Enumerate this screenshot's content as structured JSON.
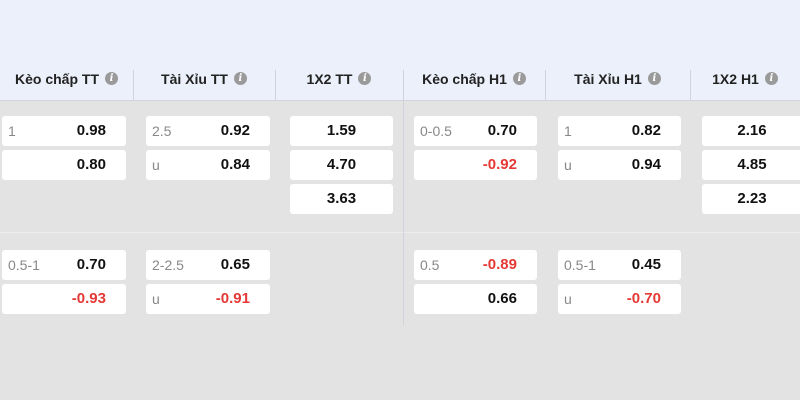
{
  "columns": [
    {
      "title": "Kèo chấp TT",
      "groups": [
        [
          {
            "label": "1",
            "value": "0.98"
          },
          {
            "value": "0.80"
          }
        ],
        [
          {
            "label": "0.5-1",
            "value": "0.70"
          },
          {
            "value": "-0.93"
          }
        ]
      ]
    },
    {
      "title": "Tài Xỉu TT",
      "groups": [
        [
          {
            "label": "2.5",
            "value": "0.92"
          },
          {
            "label": "u",
            "value": "0.84"
          }
        ],
        [
          {
            "label": "2-2.5",
            "value": "0.65"
          },
          {
            "label": "u",
            "value": "-0.91"
          }
        ]
      ]
    },
    {
      "title": "1X2 TT",
      "groups": [
        [
          {
            "value": "1.59"
          },
          {
            "value": "4.70"
          },
          {
            "value": "3.63"
          }
        ],
        []
      ]
    },
    {
      "title": "Kèo chấp H1",
      "groups": [
        [
          {
            "label": "0-0.5",
            "value": "0.70"
          },
          {
            "value": "-0.92"
          }
        ],
        [
          {
            "label": "0.5",
            "value": "-0.89"
          },
          {
            "value": "0.66"
          }
        ]
      ]
    },
    {
      "title": "Tài Xỉu H1",
      "groups": [
        [
          {
            "label": "1",
            "value": "0.82"
          },
          {
            "label": "u",
            "value": "0.94"
          }
        ],
        [
          {
            "label": "0.5-1",
            "value": "0.45"
          },
          {
            "label": "u",
            "value": "-0.70"
          }
        ]
      ]
    },
    {
      "title": "1X2 H1",
      "groups": [
        [
          {
            "value": "2.16"
          },
          {
            "value": "4.85"
          },
          {
            "value": "2.23"
          }
        ],
        []
      ]
    }
  ]
}
